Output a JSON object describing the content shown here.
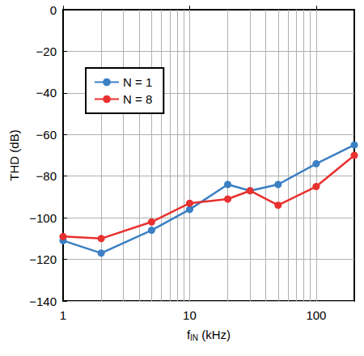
{
  "chart_data": {
    "type": "line",
    "xlabel": "fIN (kHz)",
    "ylabel": "THD (dB)",
    "log": "x",
    "grid": true,
    "legend": "upper left",
    "xlim": [
      1,
      200
    ],
    "xticks": [
      1,
      10,
      100
    ],
    "ylim": [
      -140,
      0
    ],
    "yticks": [
      {
        "value": -140,
        "label": "−140"
      },
      {
        "value": -120,
        "label": "−120"
      },
      {
        "value": -100,
        "label": "−100"
      },
      {
        "value": -80,
        "label": "−80"
      },
      {
        "value": -60,
        "label": "−60"
      },
      {
        "value": -40,
        "label": "−40"
      },
      {
        "value": -20,
        "label": "−20"
      },
      0
    ],
    "x": [
      1,
      2,
      5,
      10,
      20,
      30,
      50,
      100,
      200
    ],
    "series": [
      {
        "name": "N = 1",
        "color": "#3b7fc4",
        "marker": "circle",
        "line_style": "solid",
        "values": [
          -111,
          -117,
          -106,
          -96,
          -84,
          -87,
          -84,
          -74,
          -65
        ]
      },
      {
        "name": "N = 8",
        "color": "#e8312f",
        "marker": "circle",
        "line_style": "solid",
        "values": [
          -109,
          -110,
          -102,
          -93,
          -91,
          -87,
          -94,
          -85,
          -70
        ]
      }
    ]
  }
}
